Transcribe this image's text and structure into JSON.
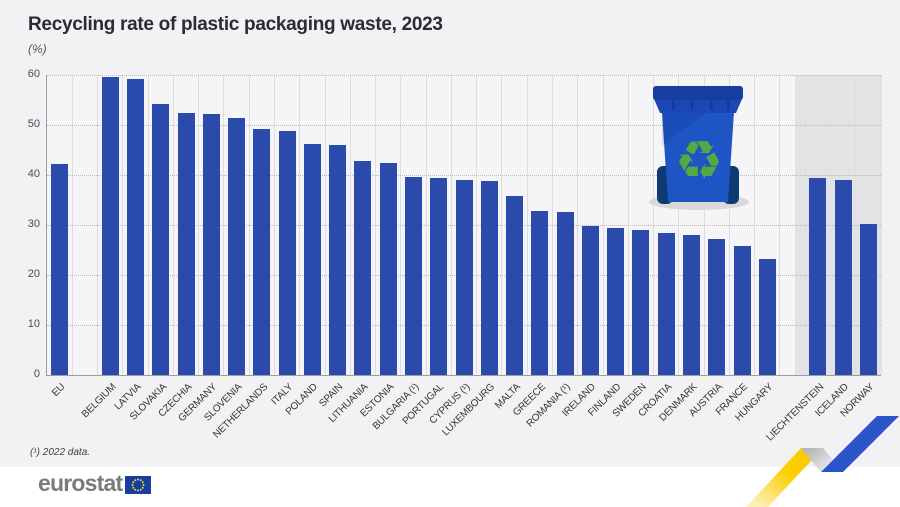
{
  "page": {
    "background": "#f2f2f4",
    "footer_background": "#ffffff"
  },
  "header": {
    "title": "Recycling rate of plastic packaging waste, 2023",
    "unit_label": "(%)"
  },
  "chart_data": {
    "type": "bar",
    "title": "Recycling rate of plastic packaging waste, 2023",
    "unit": "(%)",
    "ylabel": "",
    "ylim": [
      0,
      60
    ],
    "yticks": [
      0,
      10,
      20,
      30,
      40,
      50,
      60
    ],
    "grid": "horizontal dotted gridlines, thin vertical column separators",
    "legend": "none",
    "bar_color": "#2a4bac",
    "efta_band_color": "#e3e3e6",
    "categories": [
      "EU",
      "BELGIUM",
      "LATVIA",
      "SLOVAKIA",
      "CZECHIA",
      "GERMANY",
      "SLOVENIA",
      "NETHERLANDS",
      "ITALY",
      "POLAND",
      "SPAIN",
      "LITHUANIA",
      "ESTONIA",
      "BULGARIA (¹)",
      "PORTUGAL",
      "CYPRUS (¹)",
      "LUXEMBOURG",
      "MALTA",
      "GREECE",
      "ROMANIA (¹)",
      "IRELAND",
      "FINLAND",
      "SWEDEN",
      "CROATIA",
      "DENMARK",
      "AUSTRIA",
      "FRANCE",
      "HUNGARY",
      "LIECHTENSTEIN",
      "ICELAND",
      "NORWAY"
    ],
    "values": [
      42.2,
      59.7,
      59.3,
      54.3,
      52.5,
      52.2,
      51.5,
      49.2,
      48.9,
      46.3,
      46.1,
      42.9,
      42.5,
      39.6,
      39.4,
      39.1,
      38.9,
      35.9,
      32.9,
      32.6,
      29.8,
      29.4,
      29.0,
      28.5,
      28.1,
      27.2,
      25.9,
      23.3,
      39.5,
      39.0,
      30.3
    ],
    "gaps_after": [
      "EU",
      "HUNGARY"
    ],
    "annotations": "Liechtenstein, Iceland and Norway are shown on a shaded band at the right"
  },
  "footnote": {
    "text": "(¹) 2022 data."
  },
  "footer": {
    "logo_text": "eurostat"
  },
  "icons": {
    "bin": "recycling-bin-icon",
    "recycle_symbol": "♻",
    "recycle_color": "#55a945",
    "bin_blue": "#1d55c4",
    "ribbon_yellow": "#fccf00",
    "ribbon_blue": "#2a55c8",
    "flag_blue": "#173e9e",
    "star_yellow": "#f8d12c"
  }
}
